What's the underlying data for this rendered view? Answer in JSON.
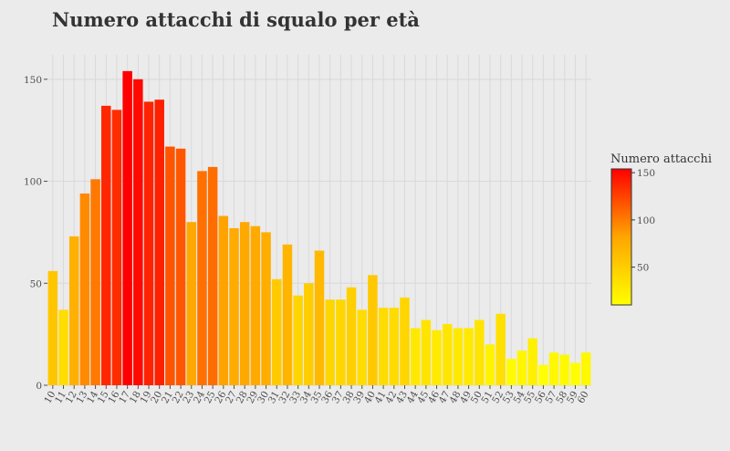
{
  "chart_data": {
    "type": "bar",
    "title": "Numero attacchi di squalo per età",
    "xlabel": "",
    "ylabel": "",
    "ylim": [
      0,
      162
    ],
    "yticks": [
      0,
      50,
      100,
      150
    ],
    "grid": true,
    "categories": [
      "10",
      "11",
      "12",
      "13",
      "14",
      "15",
      "16",
      "17",
      "18",
      "19",
      "20",
      "21",
      "22",
      "23",
      "24",
      "25",
      "26",
      "27",
      "28",
      "29",
      "30",
      "31",
      "32",
      "33",
      "34",
      "35",
      "36",
      "37",
      "38",
      "39",
      "40",
      "41",
      "42",
      "43",
      "44",
      "45",
      "46",
      "47",
      "48",
      "49",
      "50",
      "51",
      "52",
      "53",
      "54",
      "55",
      "56",
      "57",
      "58",
      "59",
      "60"
    ],
    "values": [
      56,
      37,
      73,
      94,
      101,
      137,
      135,
      154,
      150,
      139,
      140,
      117,
      116,
      80,
      105,
      107,
      83,
      77,
      80,
      78,
      75,
      52,
      69,
      44,
      50,
      66,
      42,
      42,
      48,
      37,
      54,
      38,
      38,
      43,
      28,
      32,
      27,
      30,
      28,
      28,
      32,
      20,
      35,
      13,
      17,
      23,
      10,
      16,
      15,
      11,
      16
    ],
    "legend": {
      "title": "Numero attacchi",
      "placement": "right",
      "ticks": [
        50,
        100,
        150
      ],
      "range": [
        10,
        154
      ]
    },
    "colors": {
      "low": "#ffff00",
      "mid": "#ffa500",
      "high": "#ff0000",
      "background": "#ebebeb"
    }
  }
}
